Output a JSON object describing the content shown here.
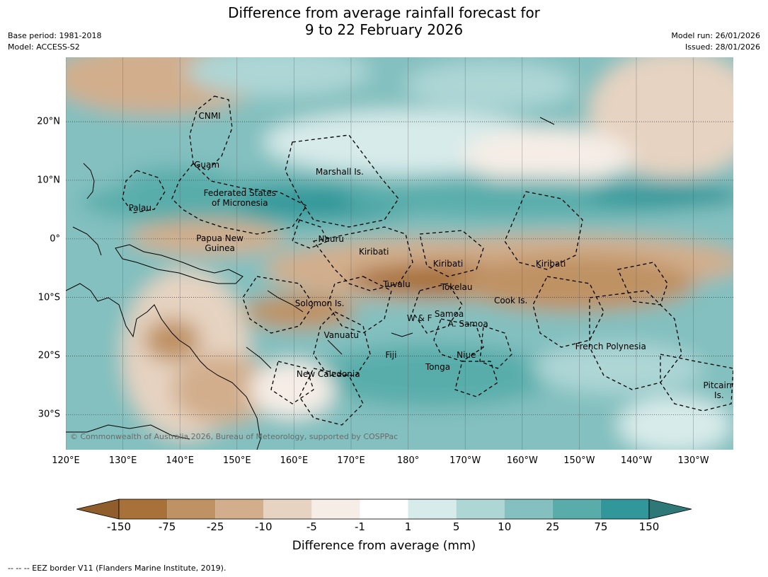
{
  "title_line1": "Difference from average rainfall forecast for",
  "title_line2": "9 to 22 February 2026",
  "base_period": "Base period: 1981-2018",
  "model": "Model: ACCESS-S2",
  "model_run": "Model run: 26/01/2026",
  "issued": "Issued: 28/01/2026",
  "copyright": "© Commonwealth of Australia 2026, Bureau of Meteorology, supported by COSPPac",
  "colorbar_title": "Difference from average (mm)",
  "footer_note": "--  --  -- EEZ border V11 (Flanders Marine Institute, 2019).",
  "map": {
    "lon_range_deg_east": [
      120,
      237
    ],
    "lat_range_deg": [
      -36,
      31
    ],
    "projection": "equirectangular",
    "gridlines": true,
    "lat_labels": [
      "20°N",
      "10°N",
      "0°",
      "10°S",
      "20°S",
      "30°S"
    ],
    "lat_values": [
      20,
      10,
      0,
      -10,
      -20,
      -30
    ],
    "lon_labels": [
      "120°E",
      "130°E",
      "140°E",
      "150°E",
      "160°E",
      "170°E",
      "180°",
      "170°W",
      "160°W",
      "150°W",
      "140°W",
      "130°W"
    ],
    "lon_values": [
      120,
      130,
      140,
      150,
      160,
      170,
      180,
      190,
      200,
      210,
      220,
      230
    ],
    "regions": [
      {
        "name": "CNMI",
        "lon": 145.2,
        "lat": 21
      },
      {
        "name": "Guam",
        "lon": 144.7,
        "lat": 12.7
      },
      {
        "name": "Marshall Is.",
        "lon": 168,
        "lat": 11.5
      },
      {
        "name": "Federated States\nof Micronesia",
        "lon": 150.5,
        "lat": 7
      },
      {
        "name": "Palau",
        "lon": 133,
        "lat": 5.3
      },
      {
        "name": "Papua New\nGuinea",
        "lon": 147,
        "lat": -0.8
      },
      {
        "name": "Nauru",
        "lon": 166.5,
        "lat": 0
      },
      {
        "name": "Kiribati",
        "lon": 174,
        "lat": -2.2
      },
      {
        "name": "Kiribati",
        "lon": 187,
        "lat": -4.3
      },
      {
        "name": "Kiribati",
        "lon": 205,
        "lat": -4.3
      },
      {
        "name": "Tuvalu",
        "lon": 178,
        "lat": -7.8
      },
      {
        "name": "Tokelau",
        "lon": 188.5,
        "lat": -8.2
      },
      {
        "name": "Solomon Is.",
        "lon": 164.5,
        "lat": -11
      },
      {
        "name": "Cook Is.",
        "lon": 198,
        "lat": -10.5
      },
      {
        "name": "Samoa",
        "lon": 187.2,
        "lat": -12.8
      },
      {
        "name": "W & F",
        "lon": 182,
        "lat": -13.5
      },
      {
        "name": "A. Samoa",
        "lon": 190.5,
        "lat": -14.5
      },
      {
        "name": "Vanuatu",
        "lon": 168.3,
        "lat": -16.5
      },
      {
        "name": "French Polynesia",
        "lon": 215.5,
        "lat": -18.4
      },
      {
        "name": "Fiji",
        "lon": 177,
        "lat": -19.8
      },
      {
        "name": "Niue",
        "lon": 190.2,
        "lat": -19.8
      },
      {
        "name": "Tonga",
        "lon": 185.2,
        "lat": -21.9
      },
      {
        "name": "New Caledonia",
        "lon": 166,
        "lat": -23.1
      },
      {
        "name": "Pitcairn\nIs.",
        "lon": 234.5,
        "lat": -25.8
      }
    ]
  },
  "legend": {
    "tick_labels": [
      "-150",
      "-75",
      "-25",
      "-10",
      "-5",
      "-1",
      "1",
      "5",
      "10",
      "25",
      "75",
      "150"
    ],
    "colors": [
      "#a8713a",
      "#bf9264",
      "#d2ae8c",
      "#e6d3c1",
      "#f5ede6",
      "#ffffff",
      "#d7ebea",
      "#add6d5",
      "#83c0bf",
      "#58adab",
      "#31979a"
    ],
    "extend_low_color": "#8f5e2c",
    "extend_high_color": "#2e7978"
  }
}
